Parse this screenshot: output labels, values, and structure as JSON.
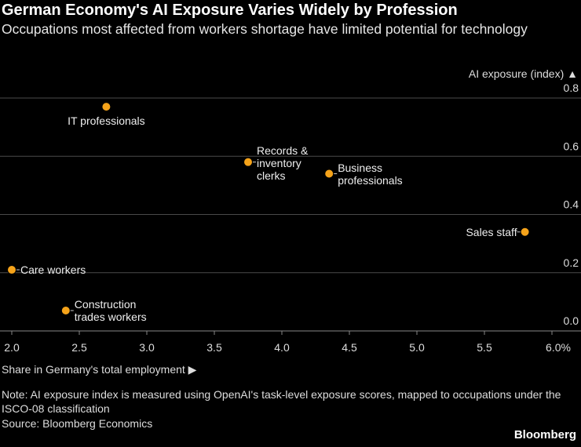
{
  "chart_data": {
    "type": "scatter",
    "title": "German Economy's AI Exposure Varies Widely by Profession",
    "subtitle": "Occupations most affected from workers shortage have limited potential for technology",
    "y_label": "AI exposure (index) ▲",
    "x_label": "Share in Germany's total employment ▶",
    "note": "Note: AI exposure index is measured using OpenAI's task-level exposure scores, mapped to occupations under the ISCO-08 classification",
    "source": "Source: Bloomberg Economics",
    "brand": "Bloomberg",
    "point_labels": [
      "IT professionals",
      "Records & inventory clerks",
      "Business professionals",
      "Sales staff",
      "Care workers",
      "Construction trades workers"
    ],
    "x": [
      2.7,
      3.75,
      4.35,
      5.8,
      2.0,
      2.4
    ],
    "values": [
      0.77,
      0.58,
      0.54,
      0.34,
      0.21,
      0.07
    ],
    "color": "#f5a31a",
    "xlim": [
      2.0,
      6.0
    ],
    "ylim": [
      0,
      0.8
    ],
    "xticks": [
      {
        "value": 2.0,
        "label": "2.0"
      },
      {
        "value": 2.5,
        "label": "2.5"
      },
      {
        "value": 3.0,
        "label": "3.0"
      },
      {
        "value": 3.5,
        "label": "3.5"
      },
      {
        "value": 4.0,
        "label": "4.0"
      },
      {
        "value": 4.5,
        "label": "4.5"
      },
      {
        "value": 5.0,
        "label": "5.0"
      },
      {
        "value": 5.5,
        "label": "5.5"
      },
      {
        "value": 6.0,
        "label": "6.0%"
      }
    ],
    "yticks": [
      {
        "value": 0,
        "label": "0.0"
      },
      {
        "value": 0.2,
        "label": "0.2"
      },
      0.4,
      0.6,
      0.8
    ],
    "grid": true
  }
}
